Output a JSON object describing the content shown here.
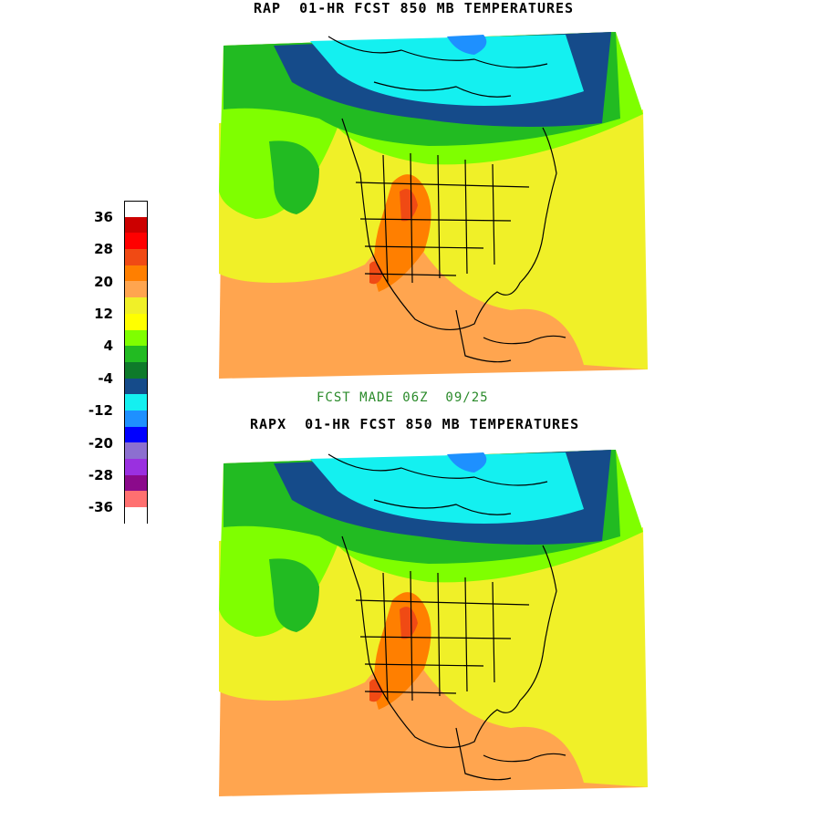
{
  "titles": {
    "top": "RAP  01-HR FCST 850 MB TEMPERATURES",
    "bottom": "RAPX  01-HR FCST 850 MB TEMPERATURES",
    "made": "FCST MADE 06Z  09/25"
  },
  "legend": {
    "colors": [
      "#ffffff",
      "#cc0000",
      "#ff0000",
      "#f04a14",
      "#ff7f00",
      "#ffa54f",
      "#f0f028",
      "#ffff00",
      "#7fff00",
      "#22bb22",
      "#0e7a2a",
      "#154b8a",
      "#14f0f0",
      "#1e90ff",
      "#0000ff",
      "#8c6fd0",
      "#9a30e0",
      "#8b0a8b",
      "#ff7070",
      "#ffffff"
    ],
    "labels": [
      {
        "text": "36",
        "index": 1
      },
      {
        "text": "28",
        "index": 3
      },
      {
        "text": "20",
        "index": 5
      },
      {
        "text": "12",
        "index": 7
      },
      {
        "text": "4",
        "index": 9
      },
      {
        "text": "-4",
        "index": 11
      },
      {
        "text": "-12",
        "index": 13
      },
      {
        "text": "-20",
        "index": 15
      },
      {
        "text": "-28",
        "index": 17
      },
      {
        "text": "-36",
        "index": 19
      }
    ]
  }
}
